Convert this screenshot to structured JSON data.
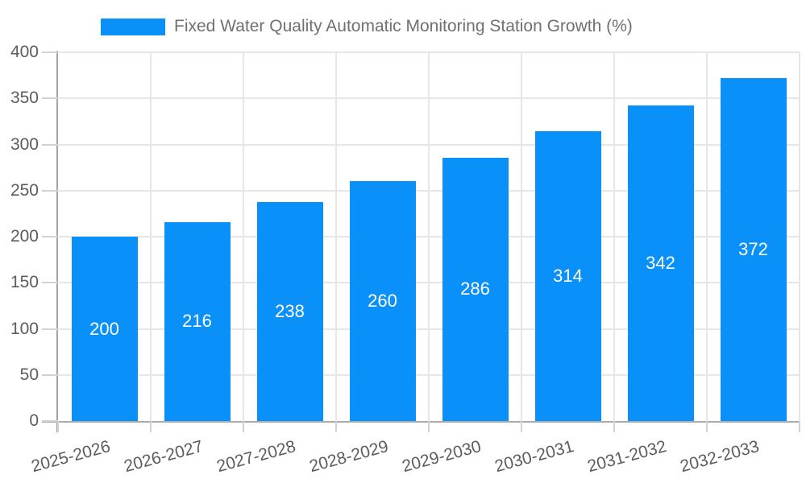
{
  "legend": {
    "label": "Fixed Water Quality Automatic Monitoring Station Growth (%)",
    "swatch_color": "#0a90f9"
  },
  "chart_data": {
    "type": "bar",
    "title": "",
    "xlabel": "",
    "ylabel": "",
    "categories": [
      "2025-2026",
      "2026-2027",
      "2027-2028",
      "2028-2029",
      "2029-2030",
      "2030-2031",
      "2031-2032",
      "2032-2033"
    ],
    "series": [
      {
        "name": "Fixed Water Quality Automatic Monitoring Station Growth (%)",
        "values": [
          200,
          216,
          238,
          260,
          286,
          314,
          342,
          372
        ]
      }
    ],
    "value_labels": [
      "200",
      "216",
      "238",
      "260",
      "286",
      "314",
      "342",
      "372"
    ],
    "ylim": [
      0,
      400
    ],
    "yticks": [
      0,
      50,
      100,
      150,
      200,
      250,
      300,
      350,
      400
    ],
    "grid": true,
    "legend_position": "top-center",
    "x_label_rotation_deg": -15,
    "bar_color": "#0a90f9",
    "value_label_color": "#ffffff",
    "gridline_color": "#e6e6e6",
    "axis_color": "#a3a3a3",
    "tick_label_color": "#5c5c5c"
  }
}
